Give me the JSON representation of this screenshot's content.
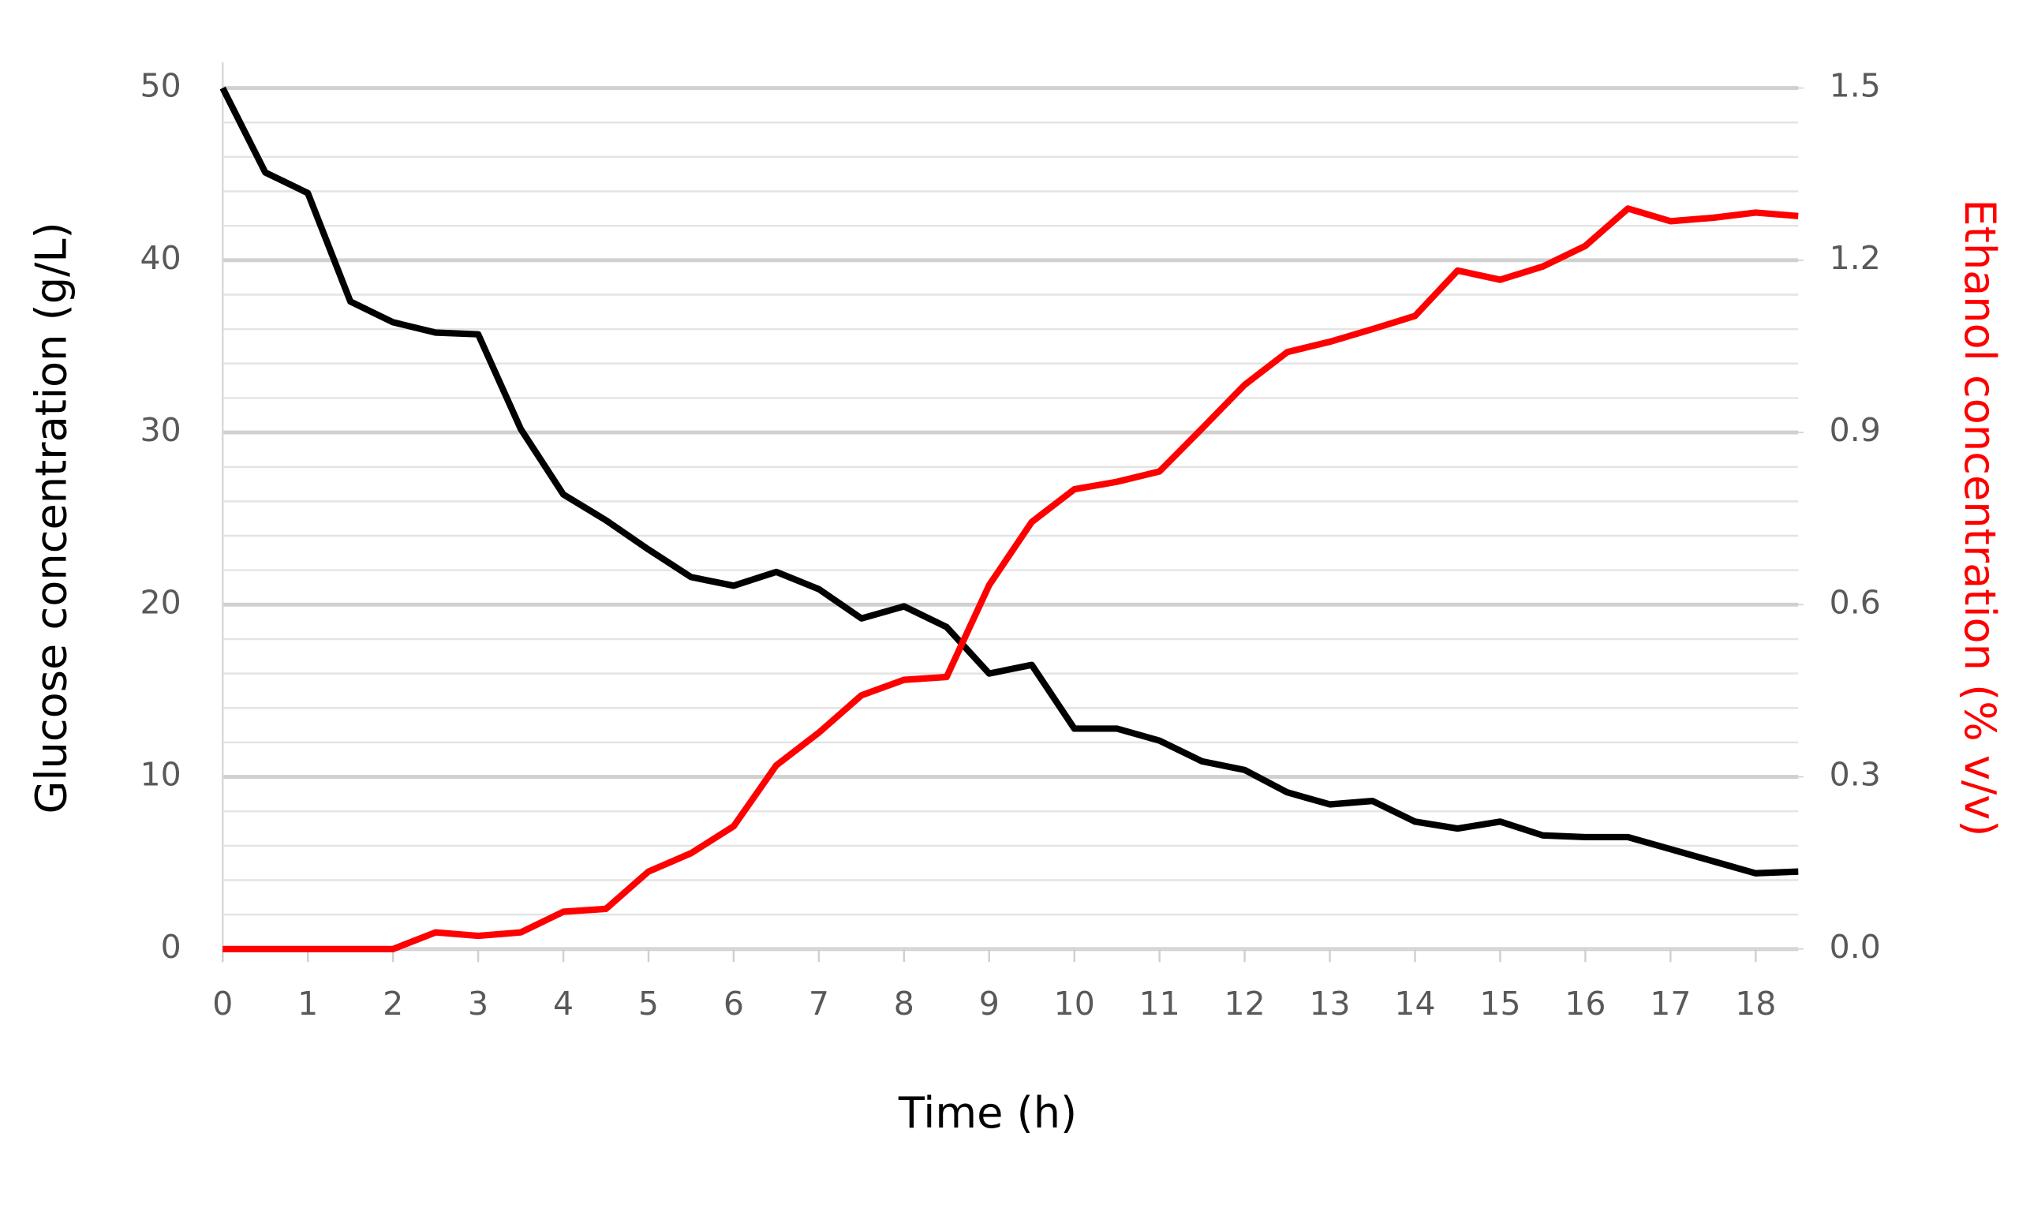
{
  "chart_data": {
    "type": "line",
    "xlabel": "Time (h)",
    "ylabel": "Glucose concentration (g/L)",
    "y2label": "Ethanol concentration (% v/v)",
    "x": [
      0,
      0.5,
      1,
      1.5,
      2,
      2.5,
      3,
      3.5,
      4,
      4.5,
      5,
      5.5,
      6,
      6.5,
      7,
      7.5,
      8,
      8.5,
      9,
      9.5,
      10,
      10.5,
      11,
      11.5,
      12,
      12.5,
      13,
      13.5,
      14,
      14.5,
      15,
      15.5,
      16,
      16.5,
      17,
      17.5,
      18,
      18.5
    ],
    "series": [
      {
        "name": "Glucose",
        "color": "#000000",
        "axis": "y",
        "values": [
          50,
          45.1,
          43.9,
          37.6,
          36.4,
          35.8,
          35.7,
          30.2,
          26.4,
          24.9,
          23.2,
          21.6,
          21.1,
          21.9,
          20.9,
          19.2,
          19.9,
          18.7,
          16.0,
          16.5,
          12.8,
          12.8,
          12.1,
          10.9,
          10.4,
          9.1,
          8.4,
          8.6,
          7.4,
          7.0,
          7.4,
          6.6,
          6.5,
          6.5,
          5.8,
          5.1,
          4.4,
          4.5
        ]
      },
      {
        "name": "Ethanol",
        "color": "#ff0000",
        "axis": "y2",
        "values": [
          0,
          0,
          0,
          0,
          0,
          0.029,
          0.023,
          0.029,
          0.065,
          0.07,
          0.135,
          0.167,
          0.214,
          0.32,
          0.377,
          0.442,
          0.469,
          0.474,
          0.634,
          0.744,
          0.801,
          0.814,
          0.832,
          0.907,
          0.983,
          1.04,
          1.058,
          1.08,
          1.103,
          1.182,
          1.166,
          1.189,
          1.225,
          1.29,
          1.268,
          1.274,
          1.283,
          1.277
        ]
      }
    ],
    "xlim": [
      0,
      18.5
    ],
    "xticks": [
      0,
      1,
      2,
      3,
      4,
      5,
      6,
      7,
      8,
      9,
      10,
      11,
      12,
      13,
      14,
      15,
      16,
      17,
      18
    ],
    "ylim": [
      0,
      50
    ],
    "yticks": [
      0,
      10,
      20,
      30,
      40,
      50
    ],
    "y_minor_ticks": [
      2,
      4,
      6,
      8,
      12,
      14,
      16,
      18,
      22,
      24,
      26,
      28,
      32,
      34,
      36,
      38,
      42,
      44,
      46,
      48
    ],
    "y2lim": [
      0,
      1.5
    ],
    "y2ticks": [
      {
        "value": 0,
        "label": "0.0"
      },
      0.3,
      0.6,
      0.9,
      1.2,
      1.5
    ],
    "y2label_color": "#ff0000",
    "grid": true
  }
}
